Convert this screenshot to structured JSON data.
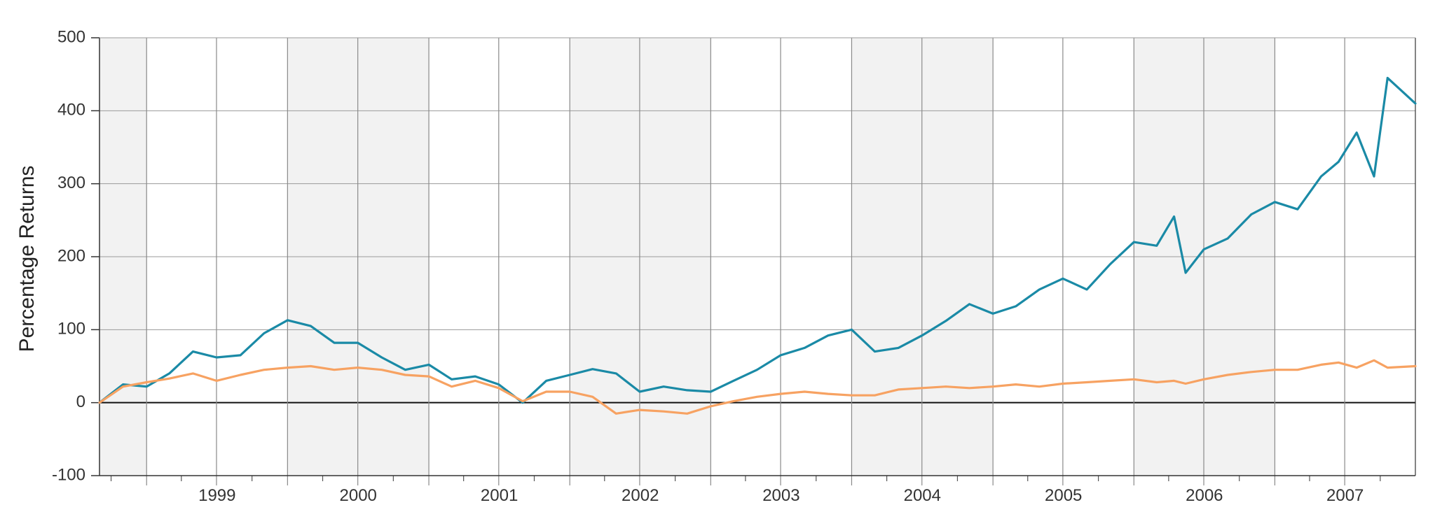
{
  "chart_data": {
    "type": "line",
    "title": "",
    "xlabel": "",
    "ylabel": "Percentage Returns",
    "ylim": [
      -100,
      500
    ],
    "yticks": [
      -100,
      0,
      100,
      200,
      300,
      400,
      500
    ],
    "x_range": [
      "1998-09-01",
      "2007-12-31"
    ],
    "x_tick_labels": [
      "1999",
      "2000",
      "2001",
      "2002",
      "2003",
      "2004",
      "2005",
      "2006",
      "2007"
    ],
    "grid": true,
    "legend": "none",
    "shaded_bands": "alternate years",
    "x": [
      "1998-09-01",
      "1998-11-01",
      "1999-01-01",
      "1999-03-01",
      "1999-05-01",
      "1999-07-01",
      "1999-09-01",
      "1999-11-01",
      "2000-01-01",
      "2000-03-01",
      "2000-05-01",
      "2000-07-01",
      "2000-09-01",
      "2000-11-01",
      "2001-01-01",
      "2001-03-01",
      "2001-05-01",
      "2001-07-01",
      "2001-09-01",
      "2001-11-01",
      "2002-01-01",
      "2002-03-01",
      "2002-05-01",
      "2002-07-01",
      "2002-09-01",
      "2002-11-01",
      "2003-01-01",
      "2003-03-01",
      "2003-05-01",
      "2003-07-01",
      "2003-09-01",
      "2003-11-01",
      "2004-01-01",
      "2004-03-01",
      "2004-05-01",
      "2004-07-01",
      "2004-09-01",
      "2004-11-01",
      "2005-01-01",
      "2005-03-01",
      "2005-05-01",
      "2005-07-01",
      "2005-09-01",
      "2005-11-01",
      "2006-01-01",
      "2006-03-01",
      "2006-04-15",
      "2006-05-15",
      "2006-07-01",
      "2006-09-01",
      "2006-11-01",
      "2007-01-01",
      "2007-03-01",
      "2007-05-01",
      "2007-06-15",
      "2007-08-01",
      "2007-09-15",
      "2007-10-20",
      "2007-12-31"
    ],
    "series": [
      {
        "color": "#1a8aa6",
        "values": [
          0,
          25,
          22,
          40,
          70,
          62,
          65,
          95,
          113,
          105,
          82,
          82,
          62,
          45,
          52,
          32,
          36,
          25,
          0,
          30,
          38,
          46,
          40,
          15,
          22,
          17,
          15,
          30,
          45,
          65,
          75,
          92,
          100,
          70,
          75,
          92,
          112,
          135,
          122,
          132,
          155,
          170,
          155,
          190,
          220,
          215,
          255,
          178,
          210,
          225,
          258,
          275,
          265,
          310,
          330,
          370,
          310,
          445,
          410
        ]
      },
      {
        "color": "#f7a262",
        "values": [
          0,
          22,
          28,
          33,
          40,
          30,
          38,
          45,
          48,
          50,
          45,
          48,
          45,
          38,
          36,
          22,
          30,
          20,
          2,
          15,
          15,
          8,
          -15,
          -10,
          -12,
          -15,
          -5,
          2,
          8,
          12,
          15,
          12,
          10,
          10,
          18,
          20,
          22,
          20,
          22,
          25,
          22,
          26,
          28,
          30,
          32,
          28,
          30,
          26,
          32,
          38,
          42,
          45,
          45,
          52,
          55,
          48,
          58,
          48,
          50
        ]
      }
    ]
  }
}
